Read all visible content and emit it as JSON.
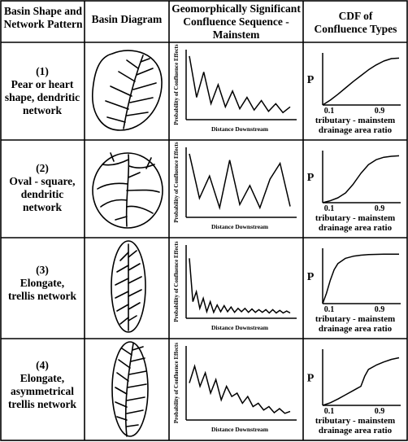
{
  "headers": {
    "col1": [
      "Basin Shape and",
      "Network Pattern"
    ],
    "col2": "Basin Diagram",
    "col3": [
      "Geomorphically Significant",
      "Confluence Sequence -",
      "Mainstem"
    ],
    "col4": [
      "CDF of",
      "Confluence Types"
    ]
  },
  "rows": [
    {
      "number": "(1)",
      "lines": [
        "Pear or heart",
        "shape, dendritic",
        "network"
      ]
    },
    {
      "number": "(2)",
      "lines": [
        "Oval - square,",
        "dendritic",
        "network"
      ]
    },
    {
      "number": "(3)",
      "lines": [
        "Elongate,",
        "trellis network"
      ]
    },
    {
      "number": "(4)",
      "lines": [
        "Elongate,",
        "asymmetrical",
        "trellis network"
      ]
    }
  ],
  "sequence_chart": {
    "ylabel": "Probability of Confluence Effects",
    "xlabel": "Distance Downstream"
  },
  "cdf_chart": {
    "ylabel": "P",
    "tick_low": "0.1",
    "tick_high": "0.9",
    "xlabel": [
      "tributary - mainstem",
      "drainage area ratio"
    ]
  },
  "chart_data": [
    {
      "type": "line",
      "panel": "sequence-1",
      "x": [
        0,
        1,
        2,
        3,
        4,
        5,
        6,
        7,
        8,
        9,
        10,
        11,
        12,
        13,
        14
      ],
      "y": [
        0.95,
        0.3,
        0.7,
        0.2,
        0.5,
        0.15,
        0.4,
        0.12,
        0.3,
        0.1,
        0.25,
        0.08,
        0.2,
        0.06,
        0.15
      ]
    },
    {
      "type": "line",
      "panel": "sequence-2",
      "x": [
        0,
        1,
        2,
        3,
        4,
        5,
        6,
        7,
        8,
        9,
        10
      ],
      "y": [
        0.95,
        0.25,
        0.6,
        0.1,
        0.85,
        0.15,
        0.45,
        0.1,
        0.55,
        0.8,
        0.12
      ]
    },
    {
      "type": "line",
      "panel": "sequence-3",
      "x": [
        0,
        1,
        2,
        3,
        4,
        5,
        6,
        7,
        8,
        9,
        10,
        11,
        12,
        13,
        14,
        15,
        16,
        17,
        18,
        19,
        20,
        21,
        22,
        23,
        24,
        25,
        26,
        27,
        28,
        29
      ],
      "y": [
        0.85,
        0.2,
        0.35,
        0.1,
        0.25,
        0.05,
        0.2,
        0.04,
        0.15,
        0.05,
        0.14,
        0.05,
        0.12,
        0.04,
        0.1,
        0.05,
        0.1,
        0.04,
        0.09,
        0.04,
        0.08,
        0.04,
        0.08,
        0.03,
        0.08,
        0.03,
        0.07,
        0.03,
        0.06,
        0.03
      ]
    },
    {
      "type": "line",
      "panel": "sequence-4",
      "x": [
        0,
        1,
        2,
        3,
        4,
        5,
        6,
        7,
        8,
        9,
        10,
        11,
        12,
        13,
        14,
        15,
        16,
        17,
        18,
        19
      ],
      "y": [
        0.5,
        0.75,
        0.45,
        0.65,
        0.35,
        0.55,
        0.25,
        0.45,
        0.3,
        0.35,
        0.2,
        0.3,
        0.15,
        0.2,
        0.1,
        0.15,
        0.06,
        0.12,
        0.05,
        0.08
      ]
    },
    {
      "type": "line",
      "panel": "cdf-1",
      "x": [
        0,
        0.1,
        0.2,
        0.3,
        0.4,
        0.5,
        0.6,
        0.7,
        0.8,
        0.9,
        1.0
      ],
      "y": [
        0,
        0.1,
        0.22,
        0.35,
        0.48,
        0.6,
        0.72,
        0.82,
        0.9,
        0.95,
        0.96
      ]
    },
    {
      "type": "line",
      "panel": "cdf-2",
      "x": [
        0,
        0.1,
        0.2,
        0.3,
        0.4,
        0.5,
        0.6,
        0.7,
        0.8,
        0.9,
        1.0
      ],
      "y": [
        0,
        0.04,
        0.1,
        0.2,
        0.38,
        0.6,
        0.78,
        0.88,
        0.93,
        0.95,
        0.96
      ]
    },
    {
      "type": "line",
      "panel": "cdf-3",
      "x": [
        0,
        0.05,
        0.1,
        0.15,
        0.2,
        0.3,
        0.4,
        0.5,
        0.6,
        0.8,
        1.0
      ],
      "y": [
        0,
        0.2,
        0.45,
        0.65,
        0.77,
        0.87,
        0.91,
        0.93,
        0.94,
        0.95,
        0.95
      ]
    },
    {
      "type": "line",
      "panel": "cdf-4",
      "x": [
        0,
        0.1,
        0.2,
        0.3,
        0.4,
        0.45,
        0.5,
        0.55,
        0.6,
        0.7,
        0.8,
        0.9,
        1.0
      ],
      "y": [
        0,
        0.05,
        0.12,
        0.2,
        0.28,
        0.32,
        0.36,
        0.55,
        0.68,
        0.76,
        0.82,
        0.87,
        0.9
      ]
    }
  ]
}
